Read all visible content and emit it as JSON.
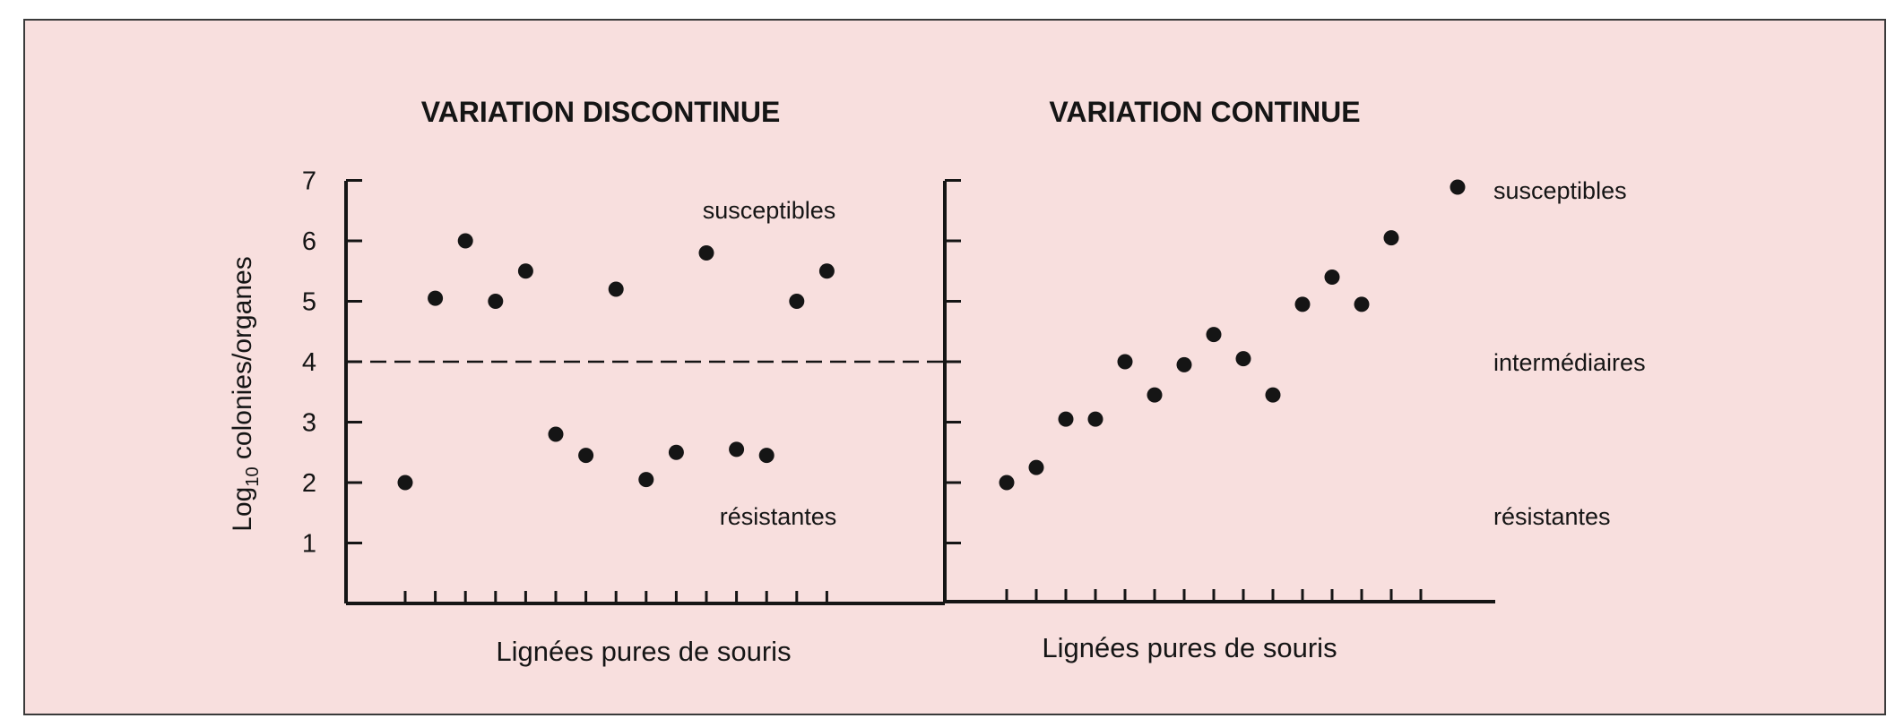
{
  "chart_data": [
    {
      "type": "scatter",
      "title": "VARIATION DISCONTINUE",
      "xlabel": "Lignées pures de souris",
      "ylabel_main": "Log",
      "ylabel_sub": "10",
      "ylabel_rest": " colonies/organes",
      "ylim": [
        0,
        7
      ],
      "yticks": [
        "1",
        "2",
        "3",
        "4",
        "5",
        "6",
        "7"
      ],
      "threshold": 4,
      "annotations": [
        "susceptibles",
        "résistantes"
      ],
      "x": [
        1,
        2,
        3,
        4,
        5,
        6,
        7,
        8,
        9,
        10,
        11,
        12,
        13,
        14,
        15
      ],
      "y": [
        2.0,
        5.05,
        6.0,
        5.0,
        5.5,
        2.8,
        2.45,
        5.2,
        2.05,
        2.5,
        5.8,
        2.55,
        2.45,
        5.0,
        5.5
      ]
    },
    {
      "type": "scatter",
      "title": "VARIATION CONTINUE",
      "xlabel": "Lignées pures de souris",
      "ylim": [
        0,
        7
      ],
      "legend": [
        {
          "label": "susceptibles",
          "marker": "dot"
        },
        {
          "label": "intermédiaires"
        },
        {
          "label": "résistantes"
        }
      ],
      "x": [
        1,
        2,
        3,
        4,
        5,
        6,
        7,
        8,
        9,
        10,
        11,
        12,
        13,
        14
      ],
      "y": [
        2.0,
        2.25,
        3.05,
        3.05,
        4.0,
        3.45,
        3.95,
        4.45,
        4.05,
        3.45,
        4.95,
        5.4,
        4.95,
        6.05
      ]
    }
  ]
}
